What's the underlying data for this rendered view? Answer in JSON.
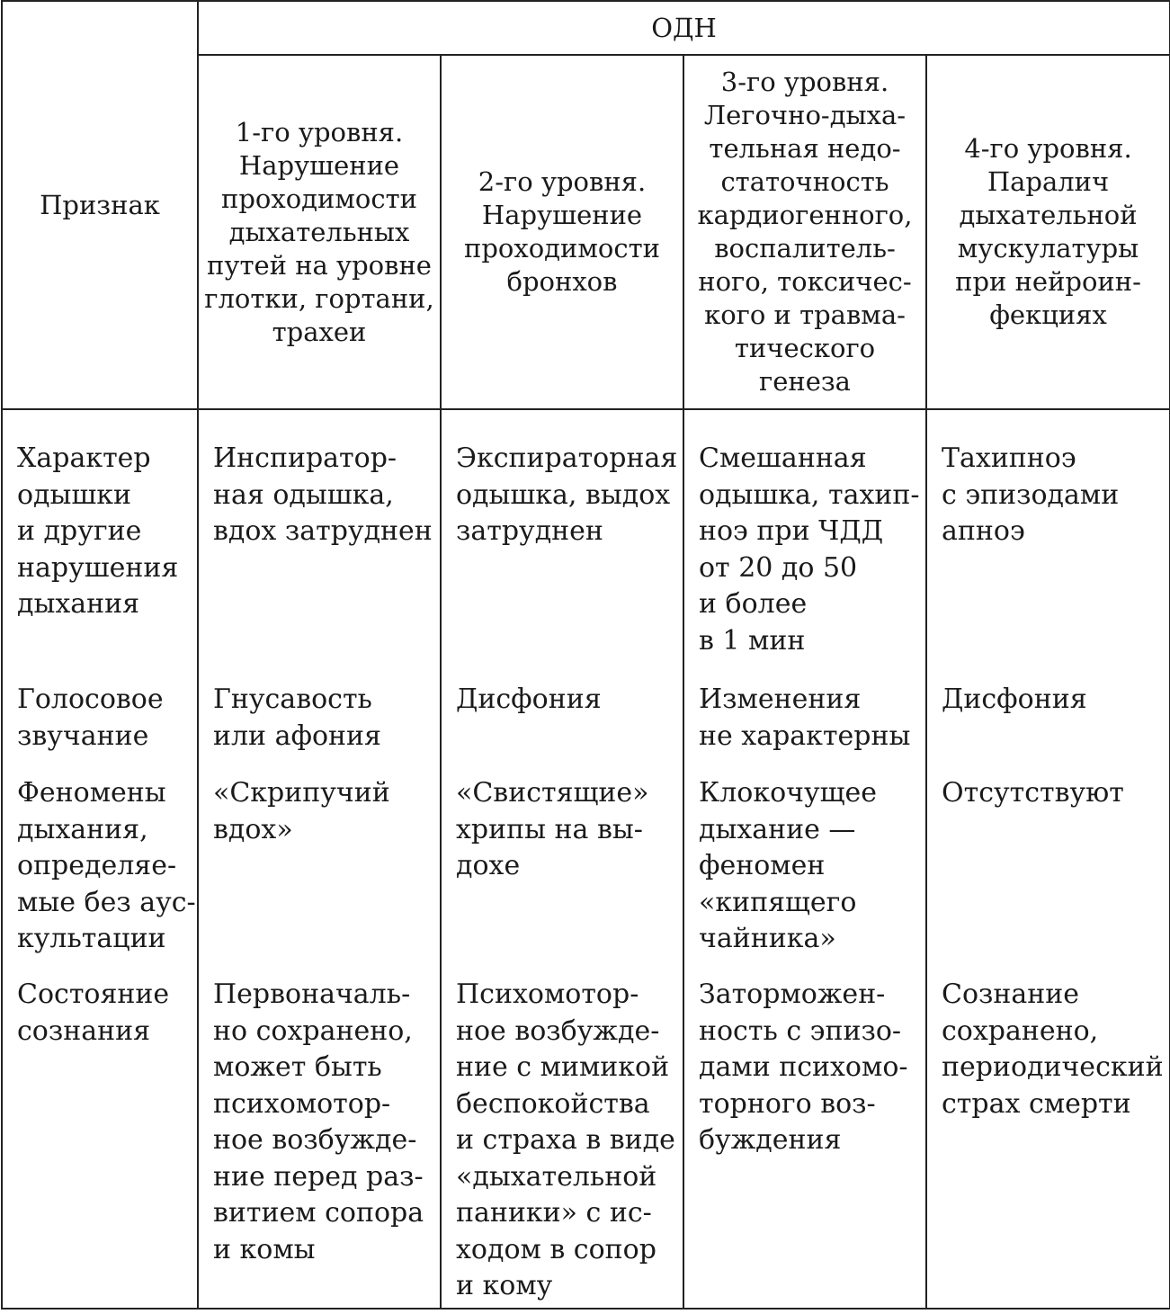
{
  "header": {
    "feature_label": "Признак",
    "group_label": "ОДН",
    "levels": [
      "1-го уровня.\nНарушение\nпроходимости\nдыхательных\nпутей на уровне\nглотки, гортани,\nтрахеи",
      "2-го уровня.\nНарушение\nпроходимости\nбронхов",
      "3-го уровня.\nЛегочно-дыха-\nтельная недо-\nстаточность\nкардиогенного,\nвоспалитель-\nного, токсичес-\nкого и травма-\nтического\nгенеза",
      "4-го уровня.\nПаралич\nдыхательной\nмускулатуры\nпри нейроин-\nфекциях"
    ]
  },
  "rows": [
    {
      "feature": "Характер\nодышки\nи другие\nнарушения\nдыхания",
      "cells": [
        "Инспиратор-\nная одышка,\nвдох затруднен",
        "Экспираторная\nодышка, выдох\nзатруднен",
        "Смешанная\nодышка, тахип-\nноэ при ЧДД\nот 20 до 50\nи более\nв 1 мин",
        "Тахипноэ\nс эпизодами\nапноэ"
      ]
    },
    {
      "feature": "Голосовое\nзвучание",
      "cells": [
        "Гнусавость\nили афония",
        "Дисфония",
        "Изменения\nне характерны",
        "Дисфония"
      ]
    },
    {
      "feature": "Феномены\nдыхания,\nопределяе-\nмые без аус-\nкультации",
      "cells": [
        "«Скрипучий\nвдох»",
        "«Свистящие»\nхрипы на вы-\nдохе",
        "Клокочущее\nдыхание —\nфеномен\n«кипящего\nчайника»",
        "Отсутствуют"
      ]
    },
    {
      "feature": "Состояние\nсознания",
      "cells": [
        "Первоначаль-\nно сохранено,\nможет быть\nпсихомотор-\nное возбужде-\nние перед раз-\nвитием сопора\nи комы",
        "Психомотор-\nное возбужде-\nние с мимикой\nбеспокойства\nи страха в виде\n«дыхательной\nпаники» с ис-\nходом в сопор\nи кому",
        "Заторможен-\nность с эпизо-\nдами психомо-\nторного воз-\nбуждения",
        "Сознание\nсохранено,\nпериодический\nстрах смерти"
      ]
    }
  ]
}
